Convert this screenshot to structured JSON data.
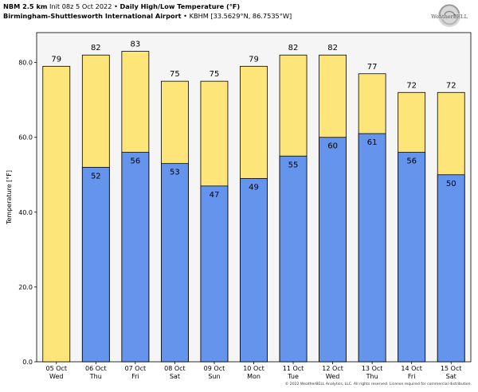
{
  "header": {
    "model": "NBM 2.5 km",
    "init": "Init 08z 5 Oct 2022",
    "sep1": "•",
    "product": "Daily High/Low Temperature (°F)",
    "station": "Birmingham-Shuttlesworth International Airport",
    "sep2": "•",
    "station_info": "KBHM [33.5629°N, 86.7535°W]"
  },
  "logo": {
    "brand": "WeatherBELL",
    "icon": "swirl-logo-icon"
  },
  "copyright": "© 2022 WeatherBELL Analytics, LLC. All rights reserved. License required for commercial distribution.",
  "colors": {
    "high": "#fde57a",
    "low": "#6494eb",
    "plot_bg": "#f5f5f5",
    "edge": "#000000"
  },
  "chart_data": {
    "type": "bar",
    "ylabel": "Temperature [°F]",
    "ylim": [
      0,
      88
    ],
    "yticks": [
      "0.0",
      "20.0",
      "40.0",
      "60.0",
      "80.0"
    ],
    "categories": [
      "05 Oct",
      "06 Oct",
      "07 Oct",
      "08 Oct",
      "09 Oct",
      "10 Oct",
      "11 Oct",
      "12 Oct",
      "13 Oct",
      "14 Oct",
      "15 Oct"
    ],
    "weekdays": [
      "Wed",
      "Thu",
      "Fri",
      "Sat",
      "Sun",
      "Mon",
      "Tue",
      "Wed",
      "Thu",
      "Fri",
      "Sat"
    ],
    "highs": [
      79,
      82,
      83,
      75,
      75,
      79,
      82,
      82,
      77,
      72,
      72
    ],
    "high_labels": [
      "79",
      "82",
      "83",
      "75",
      "75",
      "79",
      "82",
      "82",
      "77",
      "72",
      "72"
    ],
    "lows": [
      null,
      52,
      56,
      53,
      47,
      49,
      55,
      60,
      61,
      56,
      50
    ],
    "low_labels": [
      "",
      "52",
      "56",
      "53",
      "47",
      "49",
      "55",
      "60",
      "61",
      "56",
      "50"
    ],
    "grid": false
  }
}
